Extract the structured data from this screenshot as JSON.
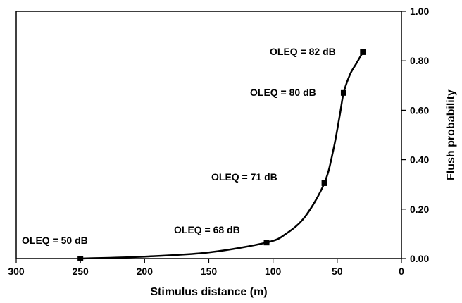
{
  "chart_data": {
    "type": "line",
    "title": "",
    "xlabel": "Stimulus distance (m)",
    "ylabel": "Flush probability",
    "xlim": [
      300,
      0
    ],
    "ylim": [
      0,
      1
    ],
    "x_reversed": true,
    "y_axis_side": "right",
    "x_ticks": [
      300,
      250,
      200,
      150,
      100,
      50,
      0
    ],
    "x_tick_labels": [
      "300",
      "250",
      "200",
      "150",
      "100",
      "50",
      "0"
    ],
    "y_ticks": [
      0,
      0.2,
      0.4,
      0.6,
      0.8,
      1.0
    ],
    "y_tick_labels": [
      "0.00",
      "0.20",
      "0.40",
      "0.60",
      "0.80",
      "1.00"
    ],
    "grid": false,
    "line_color": "#000000",
    "marker": "square",
    "points": [
      {
        "x": 250,
        "y": 0.0,
        "label": "OLEQ = 50 dB"
      },
      {
        "x": 105,
        "y": 0.065,
        "label": "OLEQ = 68 dB"
      },
      {
        "x": 60,
        "y": 0.305,
        "label": "OLEQ = 71 dB"
      },
      {
        "x": 45,
        "y": 0.67,
        "label": "OLEQ = 80 dB"
      },
      {
        "x": 30,
        "y": 0.835,
        "label": "OLEQ = 82 dB"
      }
    ],
    "curve": [
      {
        "x": 250,
        "y": 0.0
      },
      {
        "x": 200,
        "y": 0.008
      },
      {
        "x": 150,
        "y": 0.025
      },
      {
        "x": 105,
        "y": 0.065
      },
      {
        "x": 90,
        "y": 0.1
      },
      {
        "x": 75,
        "y": 0.17
      },
      {
        "x": 60,
        "y": 0.305
      },
      {
        "x": 53,
        "y": 0.44
      },
      {
        "x": 48,
        "y": 0.58
      },
      {
        "x": 45,
        "y": 0.67
      },
      {
        "x": 40,
        "y": 0.745
      },
      {
        "x": 35,
        "y": 0.79
      },
      {
        "x": 30,
        "y": 0.835
      }
    ]
  }
}
